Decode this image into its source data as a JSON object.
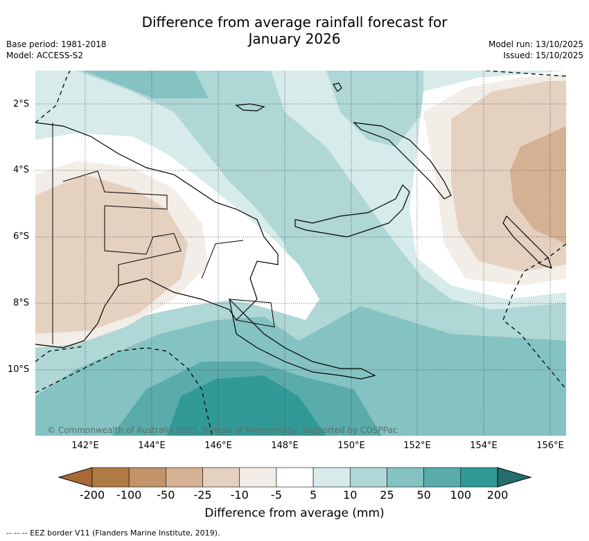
{
  "title_line1": "Difference from average rainfall forecast for",
  "title_line2": "January 2026",
  "base_period": "Base period: 1981-2018",
  "model": "Model: ACCESS-S2",
  "model_run": "Model run: 13/10/2025",
  "issued": "Issued: 15/10/2025",
  "lat_labels": [
    "2°S",
    "4°S",
    "6°S",
    "8°S",
    "10°S"
  ],
  "lon_labels": [
    "142°E",
    "144°E",
    "146°E",
    "148°E",
    "150°E",
    "152°E",
    "154°E",
    "156°E"
  ],
  "copyright": "© Commonwealth of Australia 2025, Bureau of Meteorology, supported by COSPPac",
  "colorbar": {
    "labels": [
      "-200",
      "-100",
      "-50",
      "-25",
      "-10",
      "-5",
      "5",
      "10",
      "25",
      "50",
      "100",
      "200"
    ],
    "colors": [
      "#a86a35",
      "#b07a45",
      "#c2946a",
      "#d4b192",
      "#e5d1c0",
      "#f2ede6",
      "#ffffff",
      "#d6ebea",
      "#afd7d6",
      "#84c3c2",
      "#5aacaa",
      "#329a96",
      "#246e6c"
    ],
    "title": "Difference from average (mm)"
  },
  "eez_legend": "--  --  -- EEZ border V11 (Flanders Marine Institute, 2019)."
}
